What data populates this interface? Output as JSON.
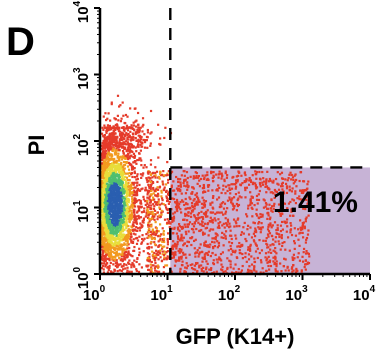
{
  "panel_label": "D",
  "chart_data": {
    "type": "scatter",
    "subtype": "flow-cytometry-density-plot",
    "xlabel": "GFP (K14+)",
    "ylabel": "PI",
    "xscale": "log",
    "yscale": "log",
    "xlim": [
      1,
      10000
    ],
    "ylim": [
      1,
      10000
    ],
    "x_ticks": [
      {
        "base": "10",
        "exp": "0"
      },
      {
        "base": "10",
        "exp": "1"
      },
      {
        "base": "10",
        "exp": "2"
      },
      {
        "base": "10",
        "exp": "3"
      },
      {
        "base": "10",
        "exp": "4"
      }
    ],
    "y_ticks": [
      {
        "base": "10",
        "exp": "0"
      },
      {
        "base": "10",
        "exp": "1"
      },
      {
        "base": "10",
        "exp": "2"
      },
      {
        "base": "10",
        "exp": "3"
      },
      {
        "base": "10",
        "exp": "4"
      }
    ],
    "gates": {
      "vertical_x": 11,
      "horizontal_y": 40
    },
    "gate_region": {
      "x_range": [
        11,
        10000
      ],
      "y_range": [
        1,
        40
      ],
      "fill": "#c7b3d6",
      "label": "1.41%"
    },
    "colors": {
      "sparse": "#e53b2a",
      "medium": "#f29a1f",
      "dense": "#e8dd3a",
      "denser": "#4fbf6f",
      "densest": "#2a5fb0"
    }
  }
}
